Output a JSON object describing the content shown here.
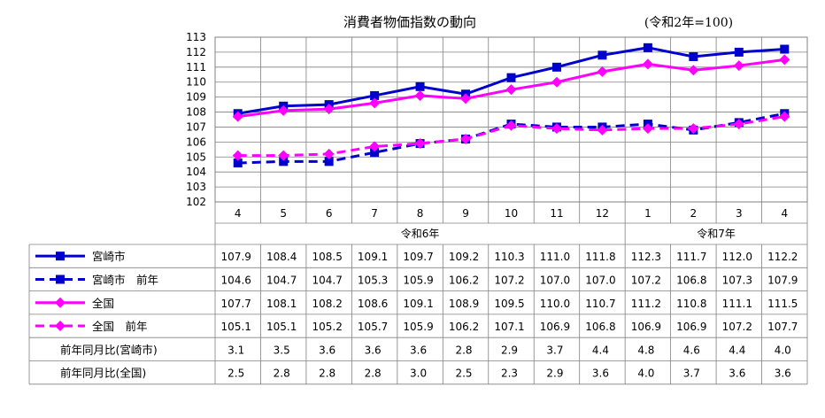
{
  "chart_data": {
    "type": "line",
    "title": "消費者物価指数の動向",
    "subtitle": "(令和2年=100)",
    "ylim": [
      102,
      113
    ],
    "yticks": [
      102,
      103,
      104,
      105,
      106,
      107,
      108,
      109,
      110,
      111,
      112,
      113
    ],
    "categories": [
      "4",
      "5",
      "6",
      "7",
      "8",
      "9",
      "10",
      "11",
      "12",
      "1",
      "2",
      "3",
      "4"
    ],
    "year_groups": [
      {
        "label": "令和6年",
        "span": 9
      },
      {
        "label": "令和7年",
        "span": 4
      }
    ],
    "grid": true,
    "series": [
      {
        "name": "宮崎市",
        "color": "#0000CC",
        "dash": false,
        "marker": "square",
        "values": [
          107.9,
          108.4,
          108.5,
          109.1,
          109.7,
          109.2,
          110.3,
          111.0,
          111.8,
          112.3,
          111.7,
          112.0,
          112.2
        ]
      },
      {
        "name": "宮崎市　前年",
        "color": "#0000CC",
        "dash": true,
        "marker": "square",
        "values": [
          104.6,
          104.7,
          104.7,
          105.3,
          105.9,
          106.2,
          107.2,
          107.0,
          107.0,
          107.2,
          106.8,
          107.3,
          107.9
        ]
      },
      {
        "name": "全国",
        "color": "#FF00FF",
        "dash": false,
        "marker": "diamond",
        "values": [
          107.7,
          108.1,
          108.2,
          108.6,
          109.1,
          108.9,
          109.5,
          110.0,
          110.7,
          111.2,
          110.8,
          111.1,
          111.5
        ]
      },
      {
        "name": "全国　前年",
        "color": "#FF00FF",
        "dash": true,
        "marker": "diamond",
        "values": [
          105.1,
          105.1,
          105.2,
          105.7,
          105.9,
          106.2,
          107.1,
          106.9,
          106.8,
          106.9,
          106.9,
          107.2,
          107.7
        ]
      }
    ],
    "table": [
      {
        "label": "宮崎市",
        "values": [
          "107.9",
          "108.4",
          "108.5",
          "109.1",
          "109.7",
          "109.2",
          "110.3",
          "111.0",
          "111.8",
          "112.3",
          "111.7",
          "112.0",
          "112.2"
        ]
      },
      {
        "label": "宮崎市　前年",
        "values": [
          "104.6",
          "104.7",
          "104.7",
          "105.3",
          "105.9",
          "106.2",
          "107.2",
          "107.0",
          "107.0",
          "107.2",
          "106.8",
          "107.3",
          "107.9"
        ]
      },
      {
        "label": "全国",
        "values": [
          "107.7",
          "108.1",
          "108.2",
          "108.6",
          "109.1",
          "108.9",
          "109.5",
          "110.0",
          "110.7",
          "111.2",
          "110.8",
          "111.1",
          "111.5"
        ]
      },
      {
        "label": "全国　前年",
        "values": [
          "105.1",
          "105.1",
          "105.2",
          "105.7",
          "105.9",
          "106.2",
          "107.1",
          "106.9",
          "106.8",
          "106.9",
          "106.9",
          "107.2",
          "107.7"
        ]
      },
      {
        "label": "前年同月比(宮崎市)",
        "values": [
          "3.1",
          "3.5",
          "3.6",
          "3.6",
          "3.6",
          "2.8",
          "2.9",
          "3.7",
          "4.4",
          "4.8",
          "4.6",
          "4.4",
          "4.0"
        ]
      },
      {
        "label": "前年同月比(全国)",
        "values": [
          "2.5",
          "2.8",
          "2.8",
          "2.8",
          "3.0",
          "2.5",
          "2.3",
          "2.9",
          "3.6",
          "4.0",
          "3.7",
          "3.6",
          "3.6"
        ]
      }
    ]
  }
}
